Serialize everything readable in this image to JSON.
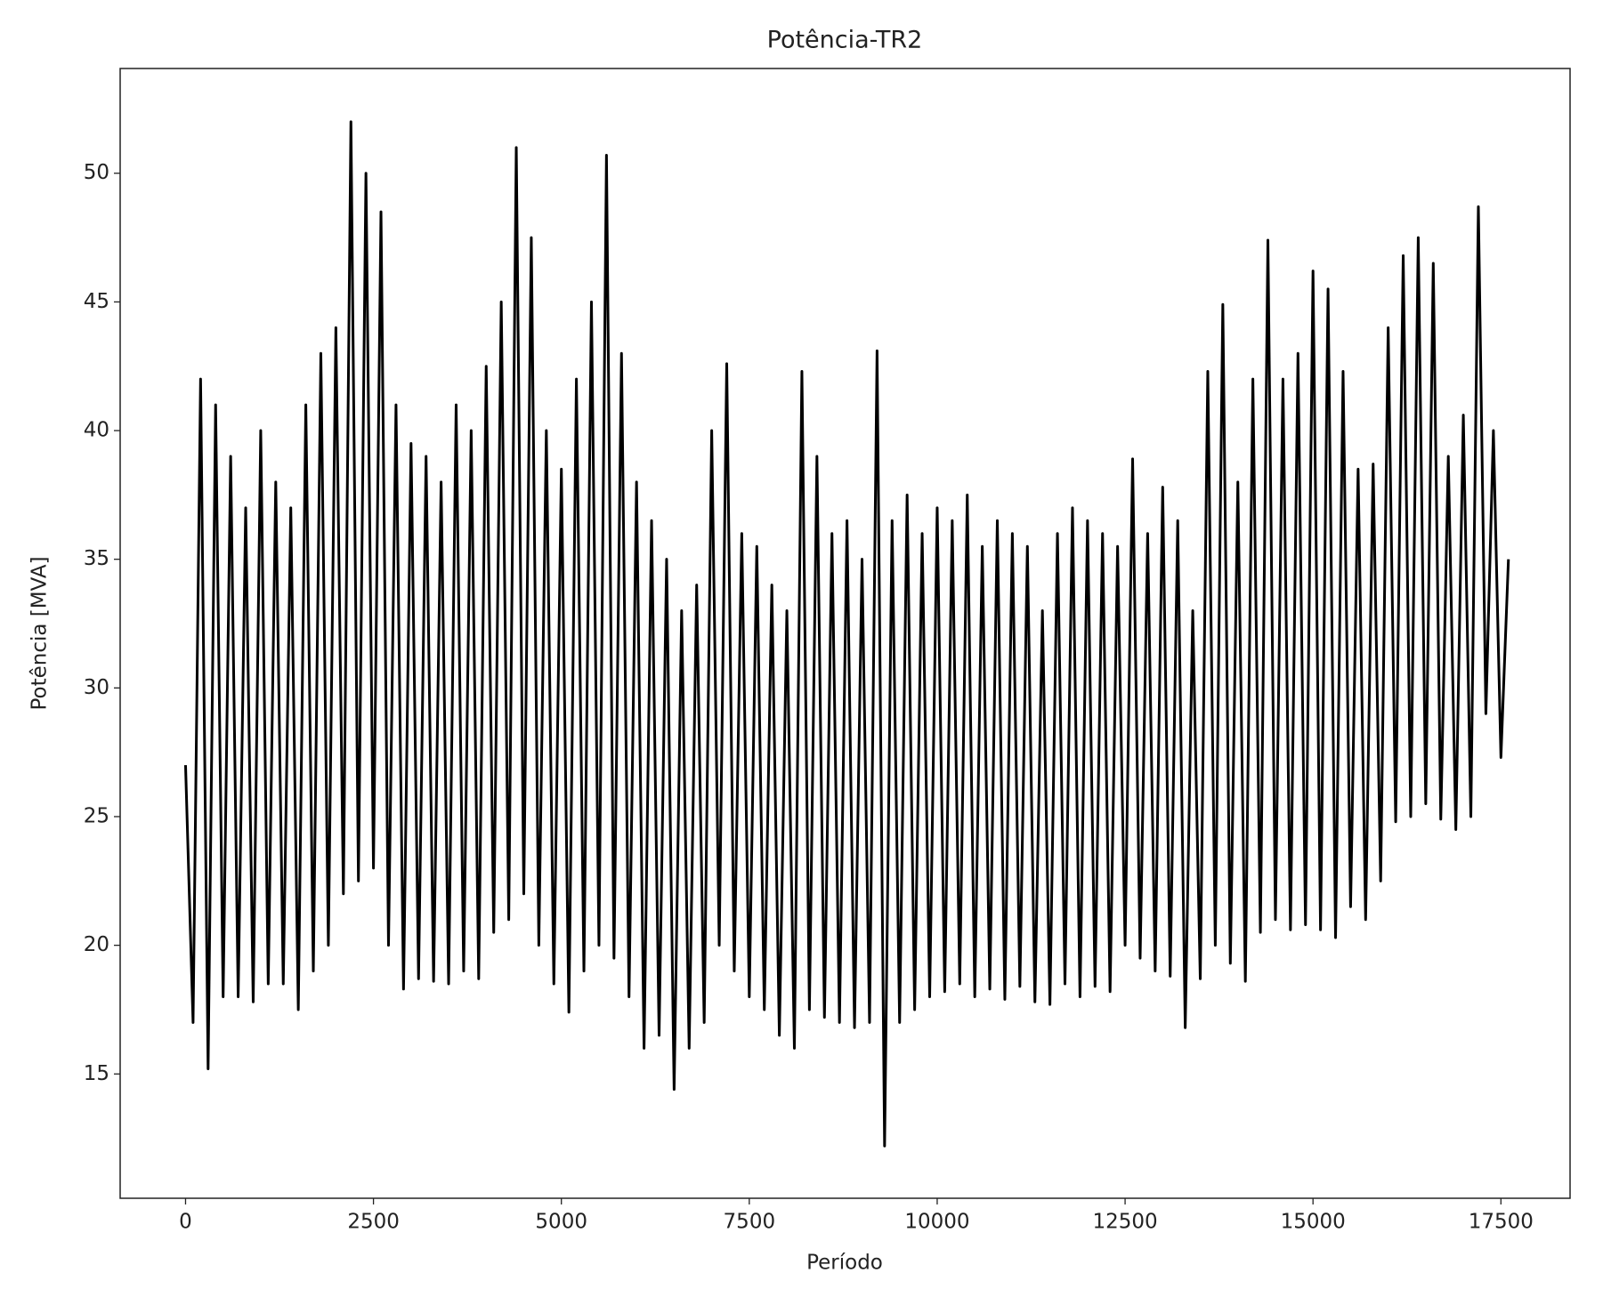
{
  "chart_data": {
    "type": "line",
    "title": "Potência-TR2",
    "x_label": "Período",
    "y_label": "Potência [MVA]",
    "x": [
      0,
      100,
      200,
      300,
      400,
      500,
      600,
      700,
      800,
      900,
      1000,
      1100,
      1200,
      1300,
      1400,
      1500,
      1600,
      1700,
      1800,
      1900,
      2000,
      2100,
      2200,
      2300,
      2400,
      2500,
      2600,
      2700,
      2800,
      2900,
      3000,
      3100,
      3200,
      3300,
      3400,
      3500,
      3600,
      3700,
      3800,
      3900,
      4000,
      4100,
      4200,
      4300,
      4400,
      4500,
      4600,
      4700,
      4800,
      4900,
      5000,
      5100,
      5200,
      5300,
      5400,
      5500,
      5600,
      5700,
      5800,
      5900,
      6000,
      6100,
      6200,
      6300,
      6400,
      6500,
      6600,
      6700,
      6800,
      6900,
      7000,
      7100,
      7200,
      7300,
      7400,
      7500,
      7600,
      7700,
      7800,
      7900,
      8000,
      8100,
      8200,
      8300,
      8400,
      8500,
      8600,
      8700,
      8800,
      8900,
      9000,
      9100,
      9200,
      9300,
      9400,
      9500,
      9600,
      9700,
      9800,
      9900,
      10000,
      10100,
      10200,
      10300,
      10400,
      10500,
      10600,
      10700,
      10800,
      10900,
      11000,
      11100,
      11200,
      11300,
      11400,
      11500,
      11600,
      11700,
      11800,
      11900,
      12000,
      12100,
      12200,
      12300,
      12400,
      12500,
      12600,
      12700,
      12800,
      12900,
      13000,
      13100,
      13200,
      13300,
      13400,
      13500,
      13600,
      13700,
      13800,
      13900,
      14000,
      14100,
      14200,
      14300,
      14400,
      14500,
      14600,
      14700,
      14800,
      14900,
      15000,
      15100,
      15200,
      15300,
      15400,
      15500,
      15600,
      15700,
      15800,
      15900,
      16000,
      16100,
      16200,
      16300,
      16400,
      16500,
      16600,
      16700,
      16800,
      16900,
      17000,
      17100,
      17200,
      17300,
      17400,
      17500,
      17600
    ],
    "series": [
      {
        "name": "Potência",
        "color": "#000000",
        "values": [
          27,
          17,
          42,
          15.2,
          41,
          18,
          39,
          18,
          37,
          17.8,
          40,
          18.5,
          38,
          18.5,
          37,
          17.5,
          41,
          19,
          43,
          20,
          44,
          22,
          52,
          22.5,
          50,
          23,
          48.5,
          20,
          41,
          18.3,
          39.5,
          18.7,
          39,
          18.6,
          38,
          18.5,
          41,
          19,
          40,
          18.7,
          42.5,
          20.5,
          45,
          21,
          51,
          22,
          47.5,
          20,
          40,
          18.5,
          38.5,
          17.4,
          42,
          19,
          45,
          20,
          50.7,
          19.5,
          43,
          18,
          38,
          16,
          36.5,
          16.5,
          35,
          14.4,
          33,
          16,
          34,
          17,
          40,
          20,
          42.6,
          19,
          36,
          18,
          35.5,
          17.5,
          34,
          16.5,
          33,
          16,
          42.3,
          17.5,
          39,
          17.2,
          36,
          17,
          36.5,
          16.8,
          35,
          17,
          43.1,
          12.2,
          36.5,
          17,
          37.5,
          17.5,
          36,
          18,
          37,
          18.2,
          36.5,
          18.5,
          37.5,
          18,
          35.5,
          18.3,
          36.5,
          17.9,
          36,
          18.4,
          35.5,
          17.8,
          33,
          17.7,
          36,
          18.5,
          37,
          18,
          36.5,
          18.4,
          36,
          18.2,
          35.5,
          20,
          38.9,
          19.5,
          36,
          19,
          37.8,
          18.8,
          36.5,
          16.8,
          33,
          18.7,
          42.3,
          20,
          44.9,
          19.3,
          38,
          18.6,
          42,
          20.5,
          47.4,
          21,
          42,
          20.6,
          43,
          20.8,
          46.2,
          20.6,
          45.5,
          20.3,
          42.3,
          21.5,
          38.5,
          21,
          38.7,
          22.5,
          44,
          24.8,
          46.8,
          25,
          47.5,
          25.5,
          46.5,
          24.9,
          39,
          24.5,
          40.6,
          25,
          48.7,
          29,
          40,
          27.3,
          35
        ]
      }
    ],
    "xlim": [
      -870,
      18420
    ],
    "ylim": [
      10.17,
      54.07
    ],
    "xticks": [
      0,
      2500,
      5000,
      7500,
      10000,
      12500,
      15000,
      17500
    ],
    "yticks": [
      15,
      20,
      25,
      30,
      35,
      40,
      45,
      50
    ]
  }
}
